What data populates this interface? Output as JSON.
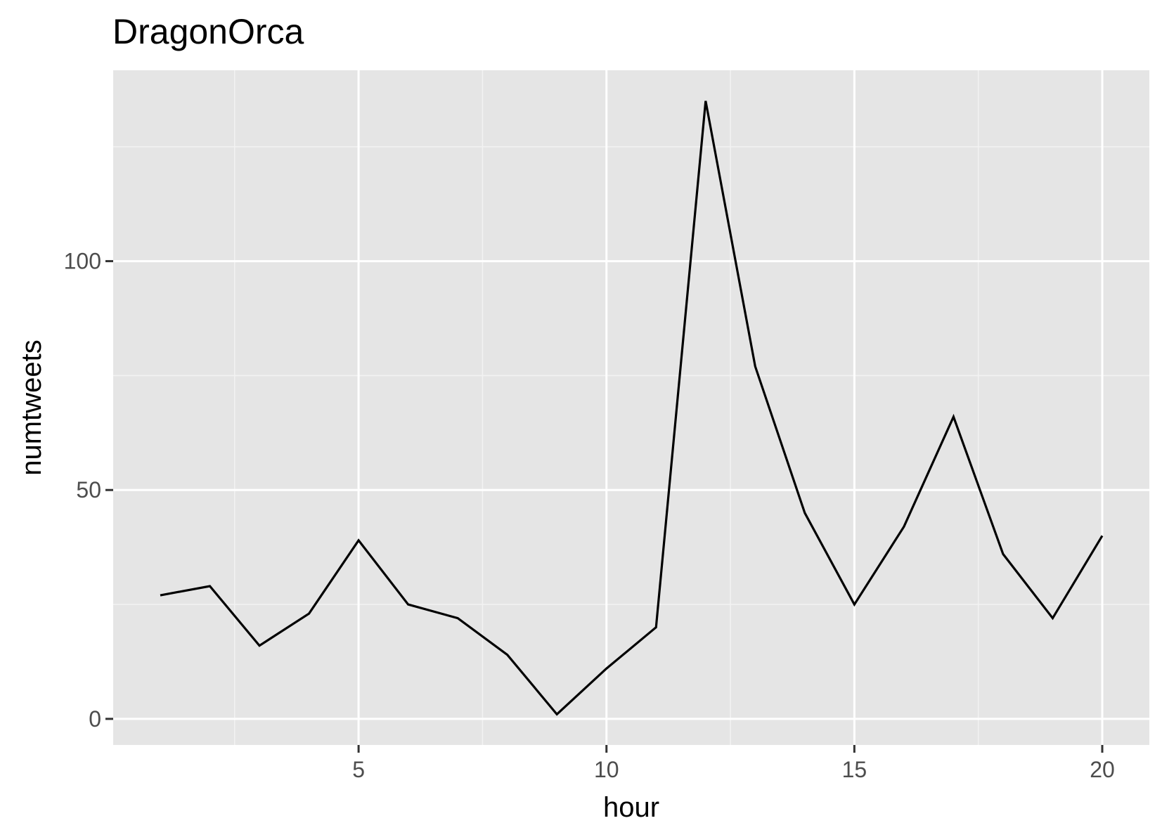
{
  "chart_data": {
    "type": "line",
    "title": "DragonOrca",
    "xlabel": "hour",
    "ylabel": "numtweets",
    "x": [
      1,
      2,
      3,
      4,
      5,
      6,
      7,
      8,
      9,
      10,
      11,
      12,
      13,
      14,
      15,
      16,
      17,
      18,
      19,
      20
    ],
    "series": [
      {
        "values": [
          27,
          29,
          16,
          23,
          39,
          25,
          22,
          14,
          1,
          11,
          20,
          135,
          77,
          45,
          25,
          42,
          66,
          36,
          22,
          40
        ]
      }
    ],
    "xlim": [
      0.05,
      20.95
    ],
    "ylim": [
      -5.7,
      141.7
    ],
    "x_ticks": [
      5,
      10,
      15,
      20
    ],
    "x_tick_labels": [
      "5",
      "10",
      "15",
      "20"
    ],
    "x_minor_ticks": [
      2.5,
      7.5,
      12.5,
      17.5
    ],
    "y_ticks": [
      0,
      50,
      100
    ],
    "y_tick_labels": [
      "0",
      "50",
      "100"
    ],
    "y_minor_ticks": [
      25,
      75,
      125
    ],
    "grid": true,
    "legend": "none",
    "colors": {
      "panel_background": "#e5e5e5",
      "grid_major": "#ffffff",
      "grid_minor": "#f2f2f2",
      "line": "#000000",
      "tick_text": "#4d4d4d",
      "tick_mark": "#333333"
    }
  }
}
